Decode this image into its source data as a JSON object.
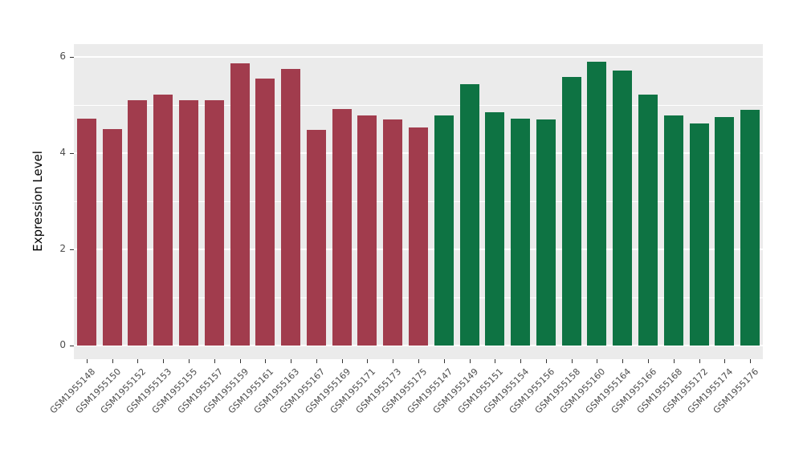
{
  "chart_data": {
    "type": "bar",
    "title": "",
    "xlabel": "",
    "ylabel": "Expression Level",
    "ylim": [
      0,
      6.3
    ],
    "yticks": [
      0,
      2,
      4,
      6
    ],
    "yticks_minor": [
      1,
      3,
      5
    ],
    "grid": "on",
    "legend": "none",
    "panel_background": "#EBEBEB",
    "categories": [
      "GSM1955148",
      "GSM1955150",
      "GSM1955152",
      "GSM1955153",
      "GSM1955155",
      "GSM1955157",
      "GSM1955159",
      "GSM1955161",
      "GSM1955163",
      "GSM1955167",
      "GSM1955169",
      "GSM1955171",
      "GSM1955173",
      "GSM1955175",
      "GSM1955147",
      "GSM1955149",
      "GSM1955151",
      "GSM1955154",
      "GSM1955156",
      "GSM1955158",
      "GSM1955160",
      "GSM1955164",
      "GSM1955166",
      "GSM1955168",
      "GSM1955172",
      "GSM1955174",
      "GSM1955176"
    ],
    "values": [
      4.72,
      4.5,
      5.1,
      5.22,
      5.1,
      5.1,
      5.87,
      5.55,
      5.75,
      4.48,
      4.92,
      4.78,
      4.7,
      4.53,
      4.78,
      5.43,
      4.85,
      4.72,
      4.7,
      5.58,
      5.9,
      5.72,
      5.22,
      4.78,
      4.62,
      4.75,
      4.9
    ],
    "groups": [
      "group1",
      "group1",
      "group1",
      "group1",
      "group1",
      "group1",
      "group1",
      "group1",
      "group1",
      "group1",
      "group1",
      "group1",
      "group1",
      "group1",
      "group2",
      "group2",
      "group2",
      "group2",
      "group2",
      "group2",
      "group2",
      "group2",
      "group2",
      "group2",
      "group2",
      "group2",
      "group2"
    ],
    "colors": {
      "group1": "#A13C4D",
      "group2": "#0E7343"
    }
  }
}
